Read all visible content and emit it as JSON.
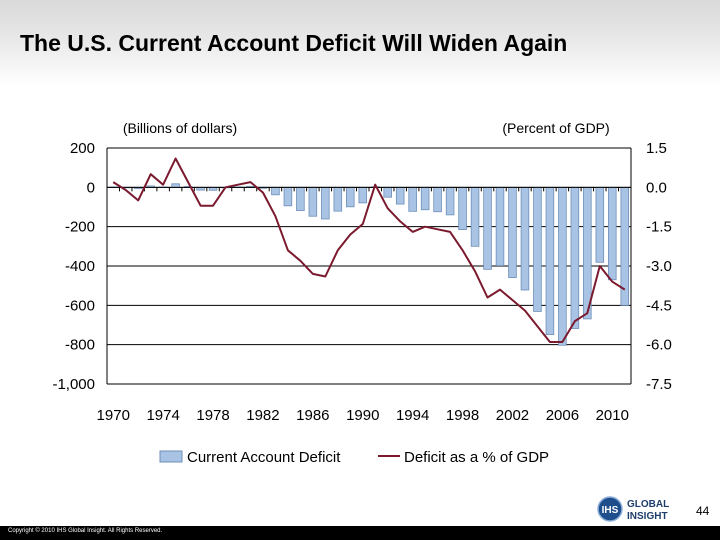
{
  "slide": {
    "title": "The U.S. Current Account Deficit Will Widen Again",
    "page_number": "44",
    "copyright": "Copyright © 2010 IHS Global Insight. All Rights Reserved.",
    "logo": {
      "initials": "IHS",
      "line1": "GLOBAL",
      "line2": "INSIGHT"
    }
  },
  "colors": {
    "bar_fill": "#a9c3e4",
    "bar_stroke": "#6d8fb8",
    "line": "#7b1a2e",
    "grid": "#000000"
  },
  "chart_data": {
    "type": "bar",
    "title": "",
    "left_axis_label": "(Billions of dollars)",
    "right_axis_label": "(Percent of GDP)",
    "ylim": [
      -1000,
      200
    ],
    "y2lim": [
      -7.5,
      1.5
    ],
    "y_ticks": [
      200,
      0,
      -200,
      -400,
      -600,
      -800,
      -1000
    ],
    "y_tick_labels": [
      "200",
      "0",
      "-200",
      "-400",
      "-600",
      "-800",
      "-1,000"
    ],
    "y2_ticks": [
      1.5,
      0,
      -1.5,
      -3,
      -4.5,
      -6,
      -7.5
    ],
    "y2_tick_labels": [
      "1.5",
      "0.0",
      "-1.5",
      "-3.0",
      "-4.5",
      "-6.0",
      "-7.5"
    ],
    "x": [
      1970,
      1971,
      1972,
      1973,
      1974,
      1975,
      1976,
      1977,
      1978,
      1979,
      1980,
      1981,
      1982,
      1983,
      1984,
      1985,
      1986,
      1987,
      1988,
      1989,
      1990,
      1991,
      1992,
      1993,
      1994,
      1995,
      1996,
      1997,
      1998,
      1999,
      2000,
      2001,
      2002,
      2003,
      2004,
      2005,
      2006,
      2007,
      2008,
      2009,
      2010,
      2011
    ],
    "x_tick_labels": [
      "1970",
      "1974",
      "1978",
      "1982",
      "1986",
      "1990",
      "1994",
      "1998",
      "2002",
      "2006",
      "2010"
    ],
    "x_tick_values": [
      1970,
      1974,
      1978,
      1982,
      1986,
      1990,
      1994,
      1998,
      2002,
      2006,
      2010
    ],
    "grid": true,
    "legend_position": "bottom",
    "series": [
      {
        "name": "Current Account Deficit",
        "type": "bar",
        "axis": "left",
        "values": [
          2,
          -1,
          -6,
          7,
          2,
          18,
          4,
          -14,
          -15,
          0,
          2,
          5,
          -5,
          -38,
          -94,
          -118,
          -147,
          -161,
          -121,
          -99,
          -79,
          3,
          -50,
          -85,
          -122,
          -114,
          -124,
          -140,
          -215,
          -300,
          -417,
          -398,
          -459,
          -522,
          -631,
          -749,
          -803,
          -718,
          -669,
          -381,
          -470,
          -600
        ]
      },
      {
        "name": "Deficit as a % of GDP",
        "type": "line",
        "axis": "right",
        "values": [
          0.2,
          -0.1,
          -0.5,
          0.5,
          0.1,
          1.1,
          0.2,
          -0.7,
          -0.7,
          0.0,
          0.1,
          0.2,
          -0.2,
          -1.1,
          -2.4,
          -2.8,
          -3.3,
          -3.4,
          -2.4,
          -1.8,
          -1.4,
          0.1,
          -0.8,
          -1.3,
          -1.7,
          -1.5,
          -1.6,
          -1.7,
          -2.4,
          -3.2,
          -4.2,
          -3.9,
          -4.3,
          -4.7,
          -5.3,
          -5.9,
          -5.9,
          -5.1,
          -4.8,
          -3.0,
          -3.6,
          -3.9
        ]
      }
    ]
  }
}
